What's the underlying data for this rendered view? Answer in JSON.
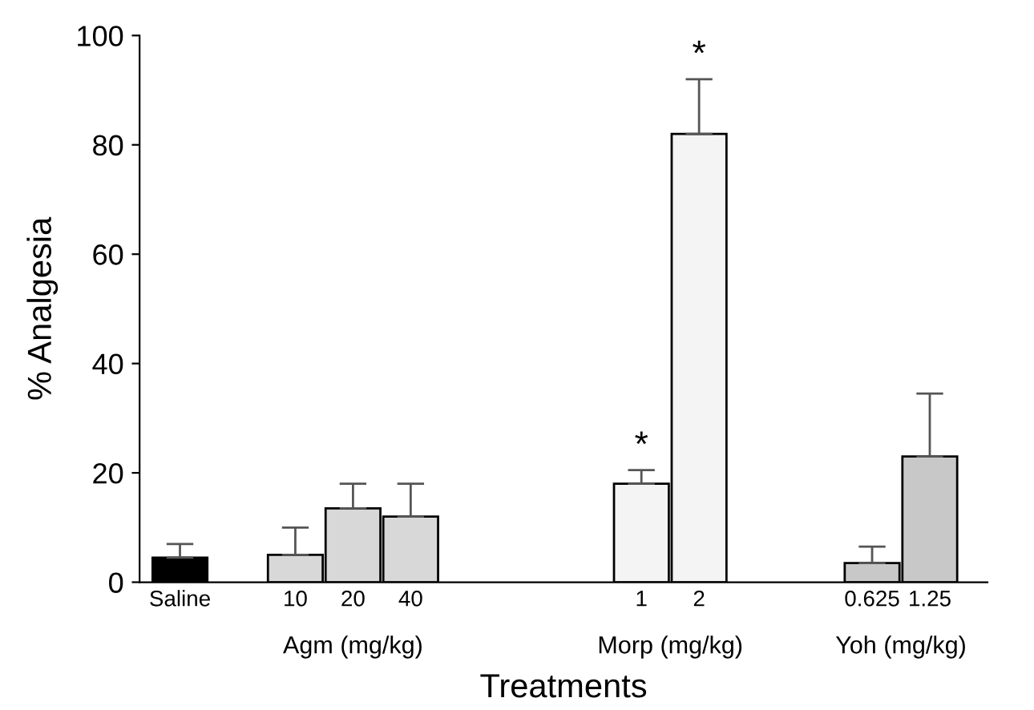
{
  "chart_data": {
    "type": "bar",
    "xlabel": "Treatments",
    "ylabel": "% Analgesia",
    "categories": [
      "Saline",
      null,
      "10",
      "20",
      "40",
      null,
      null,
      null,
      "1",
      "2",
      null,
      null,
      "0.625",
      "1.25"
    ],
    "values": [
      4.5,
      null,
      5,
      13.5,
      12,
      null,
      null,
      null,
      18,
      82,
      null,
      null,
      3.5,
      23
    ],
    "colors": [
      "#000000",
      null,
      "#d8d8d8",
      "#d8d8d8",
      "#d8d8d8",
      null,
      null,
      null,
      "#f4f4f4",
      "#f4f4f4",
      null,
      null,
      "#c8c8c8",
      "#c8c8c8"
    ],
    "errors": [
      [
        4.5,
        7
      ],
      null,
      [
        5,
        10
      ],
      [
        13.5,
        18
      ],
      [
        12,
        18
      ],
      null,
      null,
      null,
      [
        18,
        20.5
      ],
      [
        82,
        92
      ],
      null,
      null,
      [
        3.5,
        6.5
      ],
      [
        23,
        34.5
      ]
    ],
    "ylim": [
      0,
      100
    ],
    "yticks": [
      0,
      20,
      40,
      60,
      80,
      100
    ],
    "annotations": [
      "Agm (mg/kg)",
      "Morp (mg/kg)",
      "Yoh (mg/kg)",
      {
        "text": "*",
        "x": "1",
        "y": 20.5
      },
      {
        "text": "*",
        "x": "2",
        "y": 92
      }
    ],
    "grid": false
  }
}
